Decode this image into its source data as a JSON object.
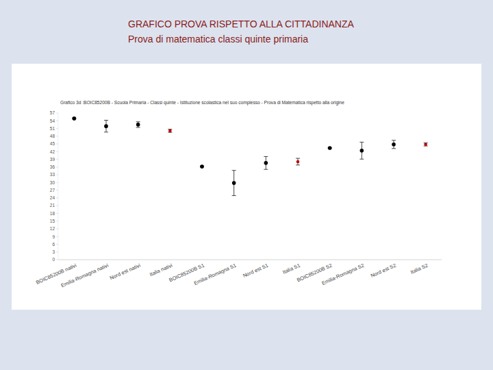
{
  "header": {
    "title": "GRAFICO PROVA RISPETTO ALLA CITTADINANZA",
    "subtitle": "Prova di matematica classi quinte primaria"
  },
  "chart_data": {
    "type": "scatter",
    "title": "Grafico 3d :BOIC85200B - Scuola Primaria - Classi quinte - Istituzione scolastica nel suo complesso - Prova di Matematica rispetto alla origine",
    "categories": [
      "BOIC85200B nativi",
      "Emilia-Romagna nativi",
      "Nord est nativi",
      "Italia nativi",
      "BOIC85200B S1",
      "Emilia-Romagna S1",
      "Nord est S1",
      "Italia S1",
      "BOIC85200B S2",
      "Emilia-Romagna S2",
      "Nord est S2",
      "Italia S2"
    ],
    "values": [
      54.9,
      51.9,
      52.5,
      50.1,
      36.2,
      29.8,
      37.6,
      38.1,
      43.4,
      42.4,
      44.8,
      44.8
    ],
    "errors": [
      0.2,
      2.3,
      1.1,
      0.6,
      0.2,
      4.9,
      2.5,
      1.3,
      0.2,
      3.3,
      1.6,
      0.6
    ],
    "colors": [
      "#000000",
      "#000000",
      "#000000",
      "#c00000",
      "#000000",
      "#000000",
      "#000000",
      "#c00000",
      "#000000",
      "#000000",
      "#000000",
      "#c00000"
    ],
    "marker": "circle",
    "ylim": [
      0,
      57
    ],
    "yticks": [
      0,
      3,
      6,
      9,
      12,
      15,
      18,
      21,
      24,
      27,
      30,
      33,
      36,
      39,
      42,
      45,
      48,
      51,
      54,
      57
    ],
    "grid": false
  }
}
